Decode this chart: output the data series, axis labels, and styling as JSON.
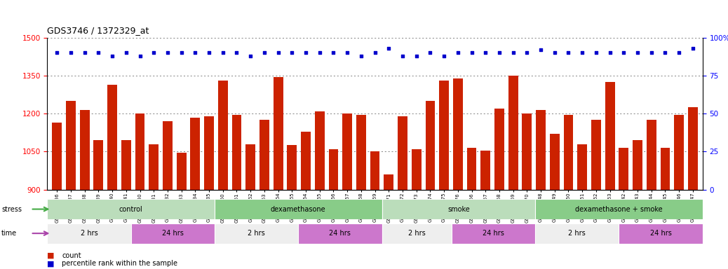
{
  "title": "GDS3746 / 1372329_at",
  "samples": [
    "GSM389536",
    "GSM389537",
    "GSM389538",
    "GSM389539",
    "GSM389540",
    "GSM389541",
    "GSM389530",
    "GSM389531",
    "GSM389532",
    "GSM389533",
    "GSM389534",
    "GSM389535",
    "GSM389560",
    "GSM389561",
    "GSM389562",
    "GSM389563",
    "GSM389564",
    "GSM389565",
    "GSM389554",
    "GSM389555",
    "GSM389556",
    "GSM389557",
    "GSM389558",
    "GSM389559",
    "GSM389571",
    "GSM389572",
    "GSM389573",
    "GSM389574",
    "GSM389575",
    "GSM389576",
    "GSM389566",
    "GSM389567",
    "GSM389568",
    "GSM389569",
    "GSM389570",
    "GSM389548",
    "GSM389549",
    "GSM389550",
    "GSM389551",
    "GSM389552",
    "GSM389553",
    "GSM389542",
    "GSM389543",
    "GSM389544",
    "GSM389545",
    "GSM389546",
    "GSM389547"
  ],
  "counts": [
    1165,
    1250,
    1215,
    1095,
    1315,
    1095,
    1200,
    1080,
    1170,
    1045,
    1185,
    1190,
    1330,
    1195,
    1080,
    1175,
    1345,
    1075,
    1130,
    1210,
    1060,
    1200,
    1195,
    1050,
    960,
    1190,
    1060,
    1250,
    1330,
    1340,
    1065,
    1055,
    1220,
    1350,
    1200,
    1215,
    1120,
    1195,
    1080,
    1175,
    1325,
    1065,
    1095,
    1175,
    1065,
    1195,
    1225
  ],
  "percentiles": [
    90,
    90,
    90,
    90,
    88,
    90,
    88,
    90,
    90,
    90,
    90,
    90,
    90,
    90,
    88,
    90,
    90,
    90,
    90,
    90,
    90,
    90,
    88,
    90,
    93,
    88,
    88,
    90,
    88,
    90,
    90,
    90,
    90,
    90,
    90,
    92,
    90,
    90,
    90,
    90,
    90,
    90,
    90,
    90,
    90,
    90,
    93
  ],
  "bar_color": "#cc2200",
  "dot_color": "#0000cc",
  "ylim_left": [
    900,
    1500
  ],
  "ylim_right": [
    0,
    100
  ],
  "yticks_left": [
    900,
    1050,
    1200,
    1350,
    1500
  ],
  "yticks_right": [
    0,
    25,
    50,
    75,
    100
  ],
  "stress_groups": [
    {
      "label": "control",
      "start": 0,
      "end": 12,
      "color": "#bbddbb"
    },
    {
      "label": "dexamethasone",
      "start": 12,
      "end": 24,
      "color": "#88cc88"
    },
    {
      "label": "smoke",
      "start": 24,
      "end": 35,
      "color": "#bbddbb"
    },
    {
      "label": "dexamethasone + smoke",
      "start": 35,
      "end": 47,
      "color": "#88cc88"
    }
  ],
  "time_groups": [
    {
      "label": "2 hrs",
      "start": 0,
      "end": 6,
      "color": "#eeeeee"
    },
    {
      "label": "24 hrs",
      "start": 6,
      "end": 12,
      "color": "#cc77cc"
    },
    {
      "label": "2 hrs",
      "start": 12,
      "end": 18,
      "color": "#eeeeee"
    },
    {
      "label": "24 hrs",
      "start": 18,
      "end": 24,
      "color": "#cc77cc"
    },
    {
      "label": "2 hrs",
      "start": 24,
      "end": 29,
      "color": "#eeeeee"
    },
    {
      "label": "24 hrs",
      "start": 29,
      "end": 35,
      "color": "#cc77cc"
    },
    {
      "label": "2 hrs",
      "start": 35,
      "end": 41,
      "color": "#eeeeee"
    },
    {
      "label": "24 hrs",
      "start": 41,
      "end": 47,
      "color": "#cc77cc"
    }
  ],
  "stress_arrow_color": "#44aa44",
  "time_arrow_color": "#aa44aa",
  "bg_color": "#ffffff",
  "grid_color": "#555555"
}
